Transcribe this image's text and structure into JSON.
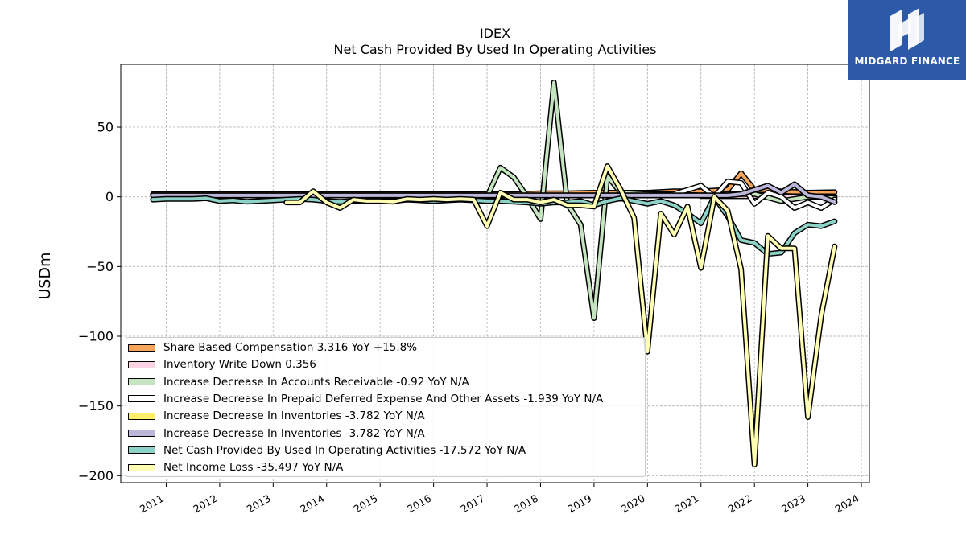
{
  "chart_data": {
    "type": "line",
    "title": "IDEX",
    "subtitle": "Net Cash Provided By Used In Operating Activities",
    "xlabel": "",
    "ylabel": "USDm",
    "xlim": [
      2010.15,
      2024.15
    ],
    "ylim": [
      -205,
      95
    ],
    "x_ticks": [
      "2011",
      "2012",
      "2013",
      "2014",
      "2015",
      "2016",
      "2017",
      "2018",
      "2019",
      "2020",
      "2021",
      "2022",
      "2023",
      "2024"
    ],
    "y_ticks": [
      50,
      0,
      -50,
      -100,
      -150,
      -200
    ],
    "y_tick_labels": [
      "50",
      "0",
      "−50",
      "−100",
      "−150",
      "−200"
    ],
    "grid": true,
    "legend_position": "lower-left",
    "series": [
      {
        "name": "Share Based Compensation",
        "legend_label": "Share Based Compensation  3.316 YoY +15.8%",
        "color": "#f6a55a",
        "x": [
          2010.75,
          2011.0,
          2011.5,
          2012.0,
          2012.5,
          2013.0,
          2013.5,
          2014.0,
          2014.5,
          2015.0,
          2015.5,
          2016.0,
          2016.5,
          2017.0,
          2017.5,
          2018.0,
          2018.5,
          2019.0,
          2019.5,
          2020.0,
          2020.5,
          2021.0,
          2021.5,
          2021.75,
          2022.0,
          2022.5,
          2023.0,
          2023.5
        ],
        "y": [
          2,
          2,
          2,
          2,
          2,
          2,
          2,
          2,
          2,
          2,
          2,
          2,
          2,
          2,
          2,
          2.5,
          2.5,
          3,
          3,
          3,
          4,
          4,
          5,
          17,
          5,
          4,
          3,
          3.3
        ]
      },
      {
        "name": "Inventory Write Down",
        "legend_label": "Inventory Write Down  0.356",
        "color": "#fbd4e3",
        "x": [
          2021.0,
          2023.5
        ],
        "y": [
          0.5,
          0.36
        ]
      },
      {
        "name": "Increase Decrease In Accounts Receivable",
        "legend_label": "Increase Decrease In Accounts Receivable  -0.92 YoY N/A",
        "color": "#c5e4c0",
        "x": [
          2010.75,
          2011.5,
          2012.5,
          2013.5,
          2014.5,
          2015.5,
          2016.5,
          2016.75,
          2017.0,
          2017.25,
          2017.5,
          2017.75,
          2018.0,
          2018.25,
          2018.5,
          2018.75,
          2019.0,
          2019.25,
          2019.5,
          2020.0,
          2020.5,
          2021.0,
          2021.5,
          2022.0,
          2022.5,
          2023.0,
          2023.5
        ],
        "y": [
          1,
          1,
          1,
          1,
          1,
          1,
          1,
          1,
          0,
          21,
          14,
          0,
          -16,
          82,
          -5,
          -20,
          -87,
          15,
          3,
          2,
          2,
          1,
          2,
          2,
          -3,
          0,
          -0.92
        ]
      },
      {
        "name": "Increase Decrease In Prepaid Deferred Expense And Other Assets",
        "legend_label": "Increase Decrease In Prepaid Deferred Expense And Other Assets  -1.939 YoY N/A",
        "color": "#ffffff",
        "x": [
          2010.75,
          2012.0,
          2013.0,
          2014.0,
          2015.0,
          2016.0,
          2017.0,
          2018.0,
          2019.0,
          2020.0,
          2020.5,
          2021.0,
          2021.25,
          2021.5,
          2021.75,
          2022.0,
          2022.25,
          2022.5,
          2022.75,
          2023.0,
          2023.25,
          2023.5
        ],
        "y": [
          1,
          1,
          1,
          1,
          1,
          1,
          1,
          1,
          1,
          1,
          2,
          8,
          0,
          11,
          10,
          -5,
          3,
          0,
          -8,
          -4,
          -8,
          -1.94
        ]
      },
      {
        "name": "Increase Decrease In Inventories",
        "legend_label": "Increase Decrease In Inventories  -3.782 YoY N/A",
        "color": "#fff06a",
        "x": [
          2010.75,
          2011.5,
          2012.5,
          2013.5,
          2014.5,
          2015.5,
          2016.5,
          2017.5,
          2018.5,
          2019.5,
          2020.0,
          2020.5,
          2021.0,
          2021.5,
          2021.75,
          2022.0,
          2022.25,
          2022.5,
          2022.75,
          2023.0,
          2023.25,
          2023.5
        ],
        "y": [
          1,
          1,
          1,
          1,
          1,
          1,
          1,
          1,
          1,
          1,
          1,
          1,
          1,
          1,
          2,
          5,
          8,
          3,
          9,
          1,
          0,
          -3.78
        ]
      },
      {
        "name": "Increase Decrease In Inventories",
        "legend_label": "Increase Decrease In Inventories  -3.782 YoY N/A",
        "color": "#bcb7d9",
        "x": [
          2010.75,
          2011.5,
          2012.5,
          2013.5,
          2014.5,
          2015.5,
          2016.5,
          2017.5,
          2018.5,
          2019.5,
          2020.0,
          2020.5,
          2021.0,
          2021.5,
          2021.75,
          2022.0,
          2022.25,
          2022.5,
          2022.75,
          2023.0,
          2023.25,
          2023.5
        ],
        "y": [
          1,
          1,
          1,
          1,
          1,
          1,
          1,
          1,
          1,
          1,
          1,
          1,
          1,
          1,
          2,
          5,
          8,
          3,
          9,
          1,
          0,
          -3.78
        ]
      },
      {
        "name": "Net Cash Provided By Used In Operating Activities",
        "legend_label": "Net Cash Provided By Used In Operating Activities  -17.572 YoY N/A",
        "color": "#8dd3c7",
        "x": [
          2010.75,
          2011.0,
          2011.25,
          2011.5,
          2011.75,
          2012.0,
          2012.25,
          2012.5,
          2012.75,
          2013.0,
          2013.25,
          2013.5,
          2013.75,
          2014.0,
          2014.25,
          2014.5,
          2014.75,
          2015.0,
          2015.25,
          2015.5,
          2015.75,
          2016.0,
          2016.25,
          2016.5,
          2016.75,
          2017.0,
          2017.25,
          2017.5,
          2017.75,
          2018.0,
          2018.25,
          2018.5,
          2018.75,
          2019.0,
          2019.25,
          2019.5,
          2019.75,
          2020.0,
          2020.25,
          2020.5,
          2020.75,
          2021.0,
          2021.25,
          2021.5,
          2021.75,
          2022.0,
          2022.25,
          2022.5,
          2022.75,
          2023.0,
          2023.25,
          2023.5
        ],
        "y": [
          -2,
          -1.5,
          -1.5,
          -1.5,
          -1,
          -3,
          -2.5,
          -3.5,
          -3,
          -2.5,
          -2,
          -1.5,
          -2,
          -3,
          -3.5,
          -3,
          -2.5,
          -3,
          -3,
          -2,
          -2.5,
          -3,
          -2.5,
          -2,
          -2.5,
          -3,
          -3,
          -3.5,
          -4,
          -5,
          -4,
          -4,
          -3,
          -6,
          -3,
          -1,
          -3,
          -5,
          -3,
          -6,
          -12,
          -19,
          0,
          -14,
          -31,
          -33,
          -41,
          -40,
          -26,
          -20,
          -21,
          -17.57
        ]
      },
      {
        "name": "Net Income Loss",
        "legend_label": "Net Income Loss  -35.497 YoY N/A",
        "color": "#ffffb3",
        "x": [
          2013.25,
          2013.5,
          2013.75,
          2014.0,
          2014.25,
          2014.5,
          2014.75,
          2015.0,
          2015.25,
          2015.5,
          2015.75,
          2016.0,
          2016.25,
          2016.5,
          2016.75,
          2017.0,
          2017.25,
          2017.5,
          2017.75,
          2018.0,
          2018.25,
          2018.5,
          2018.75,
          2019.0,
          2019.25,
          2019.5,
          2019.75,
          2020.0,
          2020.25,
          2020.5,
          2020.75,
          2021.0,
          2021.25,
          2021.5,
          2021.75,
          2022.0,
          2022.25,
          2022.5,
          2022.75,
          2023.0,
          2023.25,
          2023.5
        ],
        "y": [
          -4,
          -4,
          4,
          -4,
          -8,
          -2,
          -3,
          -3,
          -3.5,
          -1.5,
          -2,
          -1.5,
          -2,
          -1.5,
          -2,
          -21,
          3,
          -2,
          -2,
          -4,
          -2,
          -6,
          -6,
          -7,
          22,
          5,
          -15,
          -111,
          -12,
          -27,
          -7,
          -51,
          0,
          -10,
          -52,
          -192,
          -28,
          -37,
          -37,
          -158,
          -85,
          -35.5
        ]
      }
    ]
  },
  "watermark": {
    "brand": "MIDGARD FINANCE",
    "background": "#2c5aa8"
  }
}
